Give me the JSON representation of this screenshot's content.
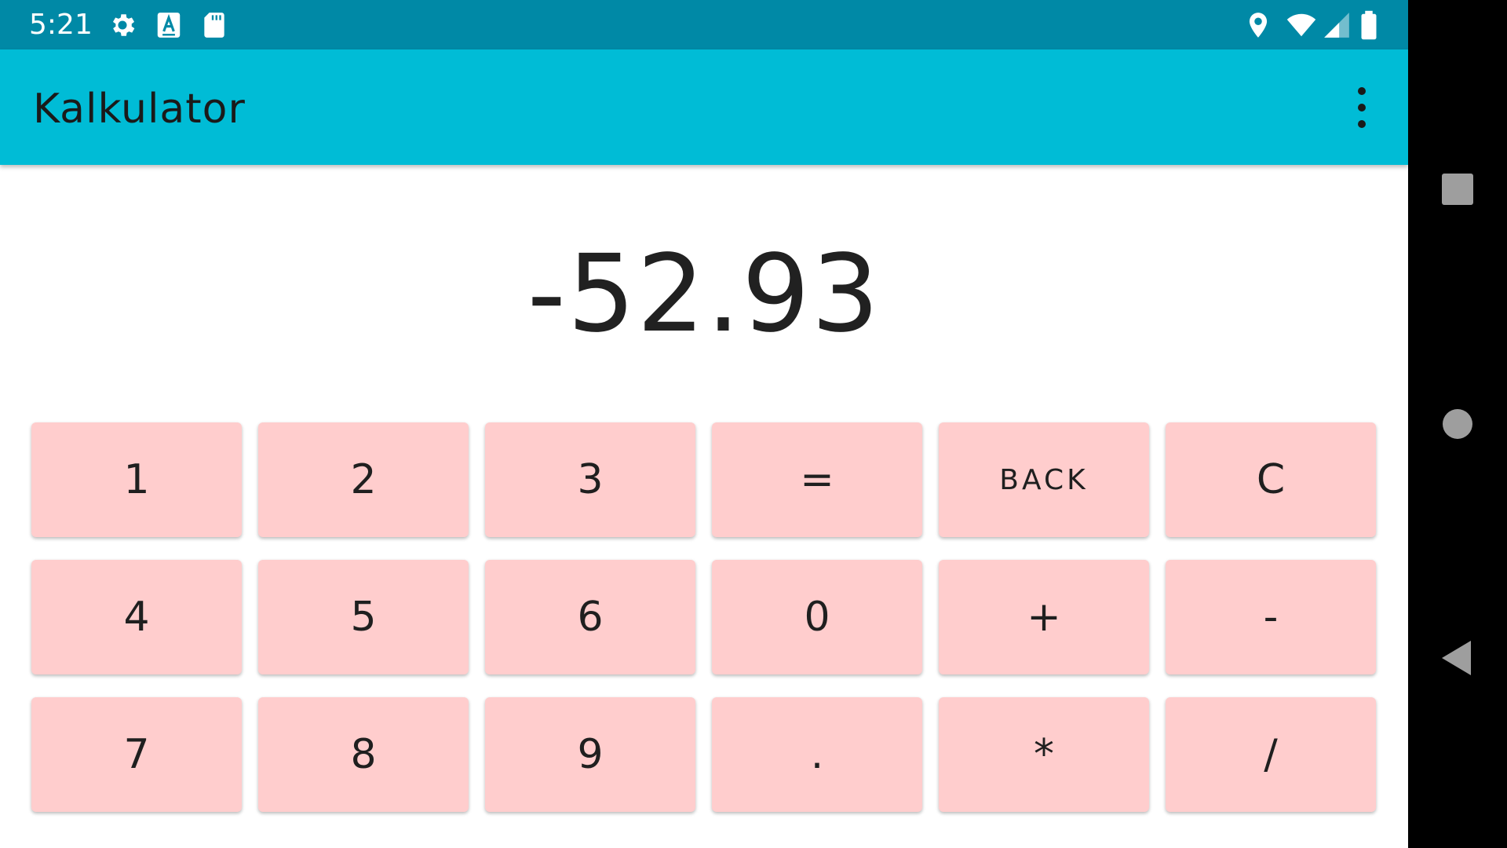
{
  "status_bar": {
    "time": "5:21",
    "left_icons": [
      "gear-icon",
      "keyboard-a-icon",
      "sd-card-icon"
    ],
    "right_icons": [
      "location-icon",
      "wifi-icon",
      "signal-icon",
      "battery-icon"
    ]
  },
  "app_bar": {
    "title": "Kalkulator",
    "menu_icon": "more-vert-icon"
  },
  "display": {
    "value": "-52.93"
  },
  "keypad": {
    "rows": [
      [
        "1",
        "2",
        "3",
        "=",
        "BACK",
        "C"
      ],
      [
        "4",
        "5",
        "6",
        "0",
        "+",
        "-"
      ],
      [
        "7",
        "8",
        "9",
        ".",
        "*",
        "/"
      ]
    ]
  },
  "colors": {
    "status_bar": "#0089a6",
    "app_bar": "#00bcd6",
    "key_background": "#ffcdcd",
    "display_text": "#212121",
    "nav_bar": "#000000"
  },
  "nav_bar": {
    "icons": [
      "recents-square-icon",
      "home-circle-icon",
      "back-triangle-icon"
    ]
  }
}
